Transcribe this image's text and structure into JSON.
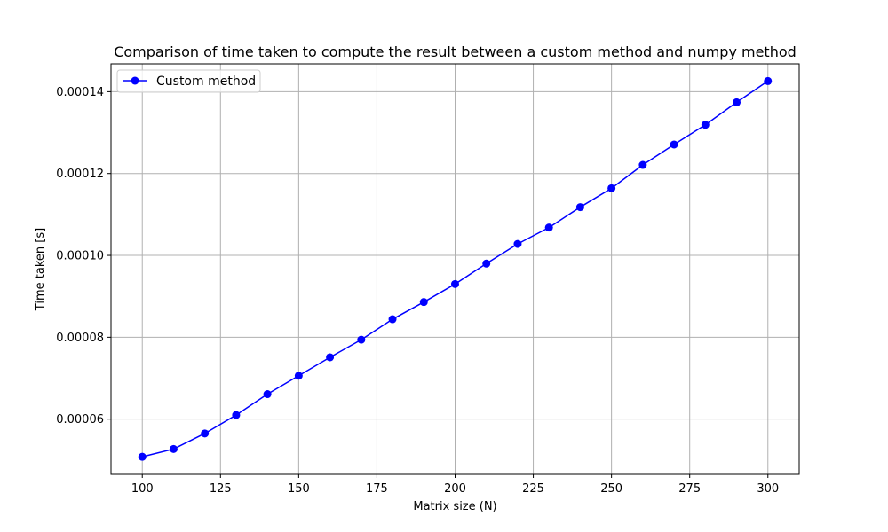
{
  "chart_data": {
    "type": "line",
    "title": "Comparison of time taken to compute the result between a custom method and numpy method",
    "xlabel": "Matrix size (N)",
    "ylabel": "Time taken [s]",
    "xlim": [
      90,
      310
    ],
    "ylim": [
      4.65e-05,
      0.0001468
    ],
    "xticks": [
      100,
      125,
      150,
      175,
      200,
      225,
      250,
      275,
      300
    ],
    "xtick_labels": [
      "100",
      "125",
      "150",
      "175",
      "200",
      "225",
      "250",
      "275",
      "300"
    ],
    "yticks": [
      6e-05,
      8e-05,
      0.0001,
      0.00012,
      0.00014
    ],
    "ytick_labels": [
      "0.00006",
      "0.00008",
      "0.00010",
      "0.00012",
      "0.00014"
    ],
    "grid": true,
    "legend_position": "top-left",
    "series": [
      {
        "name": "Custom method",
        "color": "#0000ff",
        "marker": "circle",
        "x": [
          100,
          110,
          120,
          130,
          140,
          150,
          160,
          170,
          180,
          190,
          200,
          210,
          220,
          230,
          240,
          250,
          260,
          270,
          280,
          290,
          300
        ],
        "y": [
          5.08e-05,
          5.27e-05,
          5.65e-05,
          6.1e-05,
          6.61e-05,
          7.06e-05,
          7.51e-05,
          7.94e-05,
          8.44e-05,
          8.86e-05,
          9.3e-05,
          9.8e-05,
          0.0001028,
          0.0001068,
          0.0001118,
          0.0001164,
          0.0001221,
          0.0001271,
          0.0001319,
          0.0001374,
          0.0001426
        ]
      }
    ]
  }
}
